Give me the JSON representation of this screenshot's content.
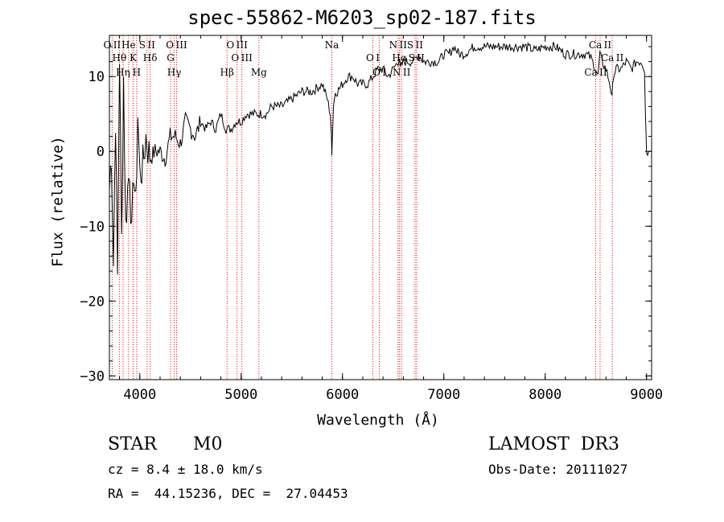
{
  "chart_data": {
    "type": "line",
    "title": "spec-55862-M6203_sp02-187.fits",
    "xlabel": "Wavelength (Å)",
    "ylabel": "Flux (relative)",
    "xlim": [
      3700,
      9050
    ],
    "ylim": [
      -30.5,
      15.5
    ],
    "xticks": [
      4000,
      5000,
      6000,
      7000,
      8000,
      9000
    ],
    "yticks": [
      10,
      0,
      -10,
      -20,
      -30
    ],
    "series": [
      {
        "name": "spectrum",
        "x": [
          3700,
          3720,
          3740,
          3760,
          3780,
          3800,
          3820,
          3840,
          3860,
          3880,
          3900,
          3920,
          3940,
          3960,
          3980,
          4000,
          4030,
          4060,
          4100,
          4150,
          4200,
          4250,
          4300,
          4350,
          4400,
          4450,
          4500,
          4550,
          4600,
          4650,
          4700,
          4750,
          4800,
          4850,
          4880,
          4900,
          4950,
          5000,
          5050,
          5100,
          5150,
          5200,
          5250,
          5300,
          5400,
          5500,
          5600,
          5700,
          5800,
          5850,
          5880,
          5890,
          5895,
          5900,
          5910,
          5930,
          5950,
          6000,
          6050,
          6100,
          6150,
          6200,
          6250,
          6300,
          6350,
          6400,
          6450,
          6500,
          6550,
          6560,
          6570,
          6600,
          6650,
          6700,
          6750,
          6800,
          6850,
          6900,
          6950,
          7000,
          7050,
          7100,
          7150,
          7200,
          7300,
          7400,
          7500,
          7600,
          7700,
          7800,
          7900,
          8000,
          8100,
          8200,
          8300,
          8400,
          8450,
          8500,
          8520,
          8540,
          8560,
          8600,
          8640,
          8660,
          8670,
          8700,
          8750,
          8800,
          8850,
          8900,
          8950,
          8980,
          8990,
          9000,
          9020
        ],
        "y": [
          -5,
          0,
          -15,
          5,
          -17,
          13,
          -12,
          10,
          -10,
          -5,
          -2,
          -12,
          -2,
          -8,
          5,
          -3,
          -2,
          2,
          -1,
          0,
          0,
          -1,
          2,
          2,
          1,
          4,
          3,
          2,
          4,
          3,
          4,
          3,
          5,
          3,
          3,
          3,
          4,
          4,
          5,
          5,
          5,
          5,
          5,
          6,
          6,
          7,
          8,
          8,
          9,
          7,
          5,
          2,
          0,
          2,
          6,
          8,
          8,
          9,
          10,
          10,
          9,
          9,
          9,
          10,
          11,
          11,
          10,
          11,
          12,
          12.5,
          11,
          12,
          12,
          12,
          13,
          12,
          12,
          12,
          12,
          13,
          13,
          14,
          13,
          13,
          14,
          14,
          14,
          14,
          14,
          14,
          13.5,
          14,
          14,
          13,
          13,
          13,
          12.5,
          11,
          10,
          13,
          12,
          11,
          9,
          7,
          10,
          11,
          11,
          12,
          11,
          12,
          12,
          11,
          5,
          0,
          0
        ]
      }
    ],
    "lines": [
      {
        "label": "O II",
        "wavelength": 3727
      },
      {
        "label": "Hθ",
        "wavelength": 3798
      },
      {
        "label": "Hη",
        "wavelength": 3835
      },
      {
        "label": "He",
        "wavelength": 3889
      },
      {
        "label": "K",
        "wavelength": 3934
      },
      {
        "label": "H",
        "wavelength": 3969
      },
      {
        "label": "S II",
        "wavelength": 4072
      },
      {
        "label": "Hδ",
        "wavelength": 4102
      },
      {
        "label": "Hγ",
        "wavelength": 4340
      },
      {
        "label": "O III",
        "wavelength": 4363
      },
      {
        "label": "G",
        "wavelength": 4304
      },
      {
        "label": "Hβ",
        "wavelength": 4861
      },
      {
        "label": "O III",
        "wavelength": 4959
      },
      {
        "label": "O III",
        "wavelength": 5007
      },
      {
        "label": "Mg",
        "wavelength": 5175
      },
      {
        "label": "Na",
        "wavelength": 5894
      },
      {
        "label": "O I",
        "wavelength": 6300
      },
      {
        "label": "O I",
        "wavelength": 6363
      },
      {
        "label": "N II",
        "wavelength": 6548
      },
      {
        "label": "Hα",
        "wavelength": 6563
      },
      {
        "label": "N II",
        "wavelength": 6583
      },
      {
        "label": "S II",
        "wavelength": 6716
      },
      {
        "label": "S II",
        "wavelength": 6731
      },
      {
        "label": "Ca II",
        "wavelength": 8498
      },
      {
        "label": "Ca II",
        "wavelength": 8542
      },
      {
        "label": "Ca II",
        "wavelength": 8662
      }
    ],
    "line_color": "#ff0000",
    "curve_color": "#000000"
  },
  "info": {
    "class": "STAR",
    "subclass": "M0",
    "survey": "LAMOST  DR3",
    "cz": "cz = 8.4 ± 18.0 km/s",
    "obs_date": "Obs-Date: 20111027",
    "coords": "RA =  44.15236, DEC =  27.04453"
  }
}
